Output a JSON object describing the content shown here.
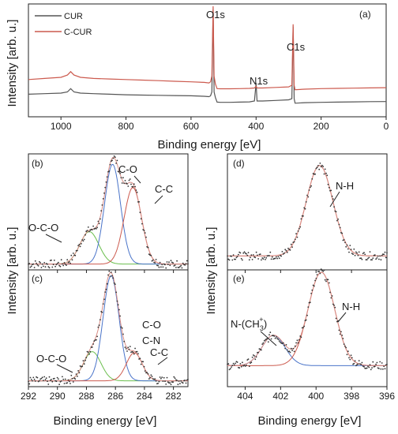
{
  "chart_data": [
    {
      "panel": "(a)",
      "type": "line",
      "xlabel": "Binding energy [eV]",
      "ylabel": "Intensity [arb. u.]",
      "xlim": [
        1100,
        0
      ],
      "xticks": [
        1000,
        800,
        600,
        400,
        200,
        0
      ],
      "ylim": [
        0,
        100
      ],
      "legend": "top-left",
      "series": [
        {
          "name": "CUR",
          "color": "#555555",
          "points": [
            [
              1100,
              20
            ],
            [
              1050,
              20.5
            ],
            [
              1000,
              21
            ],
            [
              980,
              22
            ],
            [
              970,
              25
            ],
            [
              960,
              22
            ],
            [
              940,
              21
            ],
            [
              900,
              20.5
            ],
            [
              850,
              20
            ],
            [
              800,
              19.5
            ],
            [
              750,
              19.2
            ],
            [
              700,
              19
            ],
            [
              650,
              18.8
            ],
            [
              600,
              18.6
            ],
            [
              560,
              18.2
            ],
            [
              545,
              17.8
            ],
            [
              540,
              18.5
            ],
            [
              536,
              22
            ],
            [
              532,
              95
            ],
            [
              529,
              22
            ],
            [
              525,
              17
            ],
            [
              520,
              13
            ],
            [
              510,
              12.8
            ],
            [
              480,
              12.8
            ],
            [
              450,
              13
            ],
            [
              420,
              13.2
            ],
            [
              405,
              14
            ],
            [
              400,
              30
            ],
            [
              397,
              14
            ],
            [
              380,
              14
            ],
            [
              340,
              14.5
            ],
            [
              300,
              15
            ],
            [
              290,
              16
            ],
            [
              286,
              80
            ],
            [
              283,
              16
            ],
            [
              280,
              12
            ],
            [
              250,
              12.5
            ],
            [
              200,
              12.8
            ],
            [
              150,
              13
            ],
            [
              100,
              13.2
            ],
            [
              50,
              13.4
            ],
            [
              0,
              13.5
            ]
          ]
        },
        {
          "name": "C-CUR",
          "color": "#cc5a4e",
          "points": [
            [
              1100,
              33
            ],
            [
              1050,
              34
            ],
            [
              1000,
              35
            ],
            [
              980,
              37
            ],
            [
              970,
              40
            ],
            [
              960,
              37
            ],
            [
              940,
              35
            ],
            [
              900,
              34
            ],
            [
              850,
              33.5
            ],
            [
              800,
              33
            ],
            [
              750,
              32.5
            ],
            [
              700,
              32
            ],
            [
              650,
              31.5
            ],
            [
              600,
              31
            ],
            [
              560,
              30.5
            ],
            [
              545,
              30
            ],
            [
              540,
              31
            ],
            [
              536,
              36
            ],
            [
              532,
              98
            ],
            [
              529,
              36
            ],
            [
              525,
              29
            ],
            [
              520,
              25
            ],
            [
              510,
              24.8
            ],
            [
              480,
              24.8
            ],
            [
              450,
              25
            ],
            [
              420,
              25.2
            ],
            [
              405,
              25.5
            ],
            [
              400,
              27
            ],
            [
              397,
              25.5
            ],
            [
              380,
              25.5
            ],
            [
              340,
              26
            ],
            [
              300,
              26.5
            ],
            [
              290,
              28
            ],
            [
              286,
              82
            ],
            [
              283,
              28
            ],
            [
              280,
              24
            ],
            [
              250,
              24.5
            ],
            [
              200,
              25
            ],
            [
              150,
              25.2
            ],
            [
              100,
              25.4
            ],
            [
              50,
              25.6
            ],
            [
              0,
              25.8
            ]
          ]
        }
      ],
      "annotations": [
        "O1s",
        "N1s",
        "C1s"
      ]
    },
    {
      "panel": "(b)",
      "type": "line",
      "xlim": [
        292,
        281
      ],
      "ylim": [
        0,
        1
      ],
      "peaks": [
        {
          "label": "O-C-O",
          "center": 287.8,
          "amplitude": 0.28,
          "sigma": 0.65,
          "color": "#6bbf4e"
        },
        {
          "label": "C-O",
          "center": 286.2,
          "amplitude": 0.86,
          "sigma": 0.55,
          "color": "#4a74c9"
        },
        {
          "label": "C-C",
          "center": 284.8,
          "amplitude": 0.66,
          "sigma": 0.6,
          "color": "#cc5a4e"
        }
      ]
    },
    {
      "panel": "(c)",
      "type": "line",
      "xlabel": "Binding energy [eV]",
      "xlim": [
        292,
        281
      ],
      "xticks": [
        292,
        290,
        288,
        286,
        284,
        282
      ],
      "ylim": [
        0,
        1
      ],
      "peaks": [
        {
          "label": "O-C-O",
          "center": 287.6,
          "amplitude": 0.25,
          "sigma": 0.6,
          "color": "#6bbf4e"
        },
        {
          "label": "C-O\nC-N",
          "center": 286.3,
          "amplitude": 0.9,
          "sigma": 0.55,
          "color": "#4a74c9"
        },
        {
          "label": "C-C",
          "center": 284.7,
          "amplitude": 0.24,
          "sigma": 0.55,
          "color": "#cc5a4e"
        }
      ]
    },
    {
      "panel": "(d)",
      "type": "line",
      "xlim": [
        405,
        396
      ],
      "ylim": [
        0,
        1
      ],
      "peaks": [
        {
          "label": "N-H",
          "center": 399.8,
          "amplitude": 0.78,
          "sigma": 0.75,
          "color": "#cc5a4e"
        }
      ]
    },
    {
      "panel": "(e)",
      "type": "line",
      "xlabel": "Binding energy [eV]",
      "xlim": [
        405,
        396
      ],
      "xticks": [
        404,
        402,
        400,
        398,
        396
      ],
      "ylim": [
        0,
        1
      ],
      "peaks": [
        {
          "label": "N-(CH3)3+",
          "center": 402.4,
          "amplitude": 0.26,
          "sigma": 0.65,
          "color": "#4a74c9"
        },
        {
          "label": "N-H",
          "center": 399.7,
          "amplitude": 0.8,
          "sigma": 0.75,
          "color": "#cc5a4e"
        }
      ]
    }
  ],
  "labels": {
    "panel_a": "(a)",
    "panel_b": "(b)",
    "panel_c": "(c)",
    "panel_d": "(d)",
    "panel_e": "(e)",
    "legend_cur": "CUR",
    "legend_ccur": "C-CUR",
    "peak_o1s": "O1s",
    "peak_n1s": "N1s",
    "peak_c1s": "C1s",
    "b_oco": "O-C-O",
    "b_co": "C-O",
    "b_cc": "C-C",
    "c_oco": "O-C-O",
    "c_co": "C-O",
    "c_cn": "C-N",
    "c_cc": "C-C",
    "d_nh": "N-H",
    "e_nch3": "N-(CH",
    "e_nch3_sub": "3",
    "e_nch3_close": ")",
    "e_nch3_sup": "+",
    "e_nh": "N-H",
    "xlabel_a": "Binding energy [eV]",
    "xlabel_c": "Binding energy [eV]",
    "xlabel_e": "Binding energy [eV]",
    "ylabel_a": "Intensity [arb. u.]",
    "ylabel_bc": "Intensity [arb. u.]",
    "ylabel_de": "Intensity [arb. u.]"
  },
  "colors": {
    "axis": "#222222",
    "data_dots": "#333333",
    "envelope": "#d98c84"
  }
}
